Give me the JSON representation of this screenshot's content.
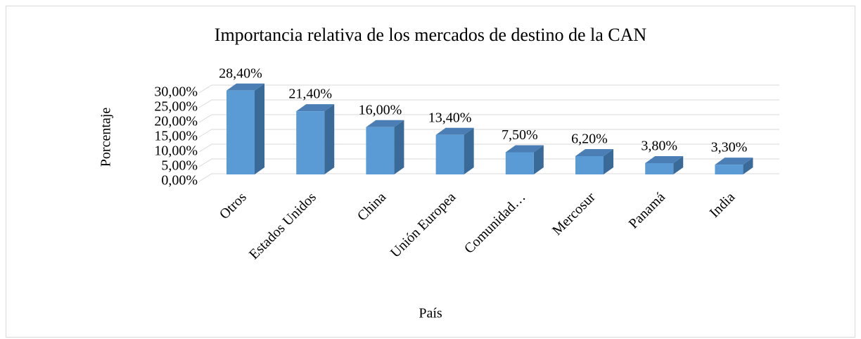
{
  "chart_data": {
    "type": "bar3d",
    "title": "Importancia relativa de los mercados de destino de la CAN",
    "x_label": "País",
    "y_label": "Porcentaje",
    "categories": [
      "Otros",
      "Estados Unidos",
      "China",
      "Unión Europea",
      "Comunidad…",
      "Mercosur",
      "Panamá",
      "India"
    ],
    "values": [
      28.4,
      21.4,
      16,
      13.4,
      7.5,
      6.2,
      3.8,
      3.3
    ],
    "value_labels": [
      "28,40%",
      "21,40%",
      "16,00%",
      "13,40%",
      "7,50%",
      "6,20%",
      "3,80%",
      "3,30%"
    ],
    "color": "#5b9bd5",
    "ylim": [
      0,
      30
    ],
    "yticks": [
      {
        "value": 0,
        "label": "0,00%"
      },
      {
        "value": 5,
        "label": "5,00%"
      },
      {
        "value": 10,
        "label": "10,00%"
      },
      {
        "value": 15,
        "label": "15,00%"
      },
      {
        "value": 20,
        "label": "20,00%"
      },
      {
        "value": 25,
        "label": "25,00%"
      },
      {
        "value": 30,
        "label": "30,00%"
      }
    ],
    "grid": true
  }
}
